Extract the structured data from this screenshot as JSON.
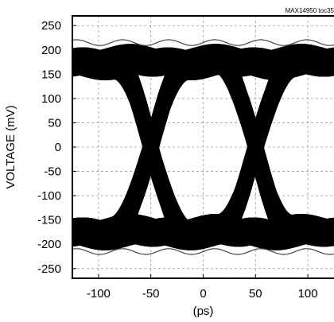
{
  "chart_data": {
    "type": "line",
    "chart_kind": "eye-diagram",
    "title": "",
    "xlabel": "(ps)",
    "ylabel": "VOLTAGE (mV)",
    "annotation": "MAX14950 toc35",
    "x_ticks": [
      -100,
      -50,
      0,
      50,
      100
    ],
    "y_ticks": [
      250,
      200,
      150,
      100,
      50,
      0,
      -50,
      -100,
      -150,
      -200,
      -250
    ],
    "xlim": [
      -125,
      125
    ],
    "ylim": [
      -270,
      270
    ],
    "grid": true,
    "high_level_mV": 175,
    "low_level_mV": -175,
    "crossings_ps": [
      -50,
      50
    ],
    "eye_center_ps": 0,
    "trace_color": "#000000",
    "background_color": "#ffffff",
    "series": [
      {
        "x": [
          -125,
          -100,
          -75,
          -50,
          -25,
          0,
          25,
          50,
          75,
          100,
          125
        ],
        "y": [
          175,
          170,
          110,
          0,
          -110,
          -170,
          -110,
          0,
          110,
          170,
          175
        ]
      },
      {
        "x": [
          -125,
          -100,
          -75,
          -50,
          -25,
          0,
          25,
          50,
          75,
          100,
          125
        ],
        "y": [
          -175,
          -170,
          -110,
          0,
          110,
          170,
          110,
          0,
          -110,
          -170,
          -175
        ]
      }
    ]
  }
}
